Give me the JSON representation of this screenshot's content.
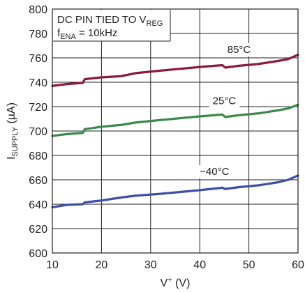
{
  "chart_data": {
    "type": "line",
    "annotation": {
      "line1_main": "DC PIN TIED TO V",
      "line1_sub": "REG",
      "line2_pre": "f",
      "line2_sub": "ENA",
      "line2_post": " = 10kHz"
    },
    "xlabel": {
      "main": "V",
      "sup": "+",
      "unit": " (V)"
    },
    "ylabel": {
      "main": "I",
      "sub": "SUPPLY",
      "unit": " (µA)"
    },
    "xlim": [
      10,
      60
    ],
    "ylim": [
      600,
      800
    ],
    "xticks": [
      10,
      20,
      30,
      40,
      50,
      60
    ],
    "yticks": [
      600,
      620,
      640,
      660,
      680,
      700,
      720,
      740,
      760,
      780,
      800
    ],
    "grid": true,
    "series": [
      {
        "name": "85°C",
        "color": "#8b1a3a",
        "points": [
          [
            10,
            737
          ],
          [
            13,
            738.5
          ],
          [
            16.2,
            739.5
          ],
          [
            16.6,
            742.5
          ],
          [
            20,
            744
          ],
          [
            24,
            745
          ],
          [
            27,
            747.5
          ],
          [
            32,
            749.5
          ],
          [
            36,
            751
          ],
          [
            40,
            752.5
          ],
          [
            44.6,
            754
          ],
          [
            45.2,
            752
          ],
          [
            48,
            753.5
          ],
          [
            52,
            755
          ],
          [
            56,
            757.5
          ],
          [
            58,
            759
          ],
          [
            60,
            762.5
          ]
        ]
      },
      {
        "name": "25°C",
        "color": "#3a8a4a",
        "points": [
          [
            10,
            696
          ],
          [
            13,
            697.5
          ],
          [
            16.2,
            698.5
          ],
          [
            16.6,
            701.5
          ],
          [
            20,
            703.5
          ],
          [
            24,
            705
          ],
          [
            27,
            707
          ],
          [
            32,
            709
          ],
          [
            36,
            710.5
          ],
          [
            40,
            712
          ],
          [
            44.6,
            713.5
          ],
          [
            45.2,
            711.5
          ],
          [
            48,
            713
          ],
          [
            52,
            714.5
          ],
          [
            56,
            717
          ],
          [
            58,
            718.5
          ],
          [
            60,
            721.5
          ]
        ]
      },
      {
        "name": "−40°C",
        "color": "#3c4fa8",
        "points": [
          [
            10,
            637.5
          ],
          [
            13,
            639.5
          ],
          [
            16.2,
            640
          ],
          [
            16.6,
            641.5
          ],
          [
            20,
            643
          ],
          [
            24,
            645.5
          ],
          [
            27,
            647
          ],
          [
            32,
            648.5
          ],
          [
            36,
            650
          ],
          [
            40,
            651.5
          ],
          [
            44.6,
            653.5
          ],
          [
            45.2,
            652.5
          ],
          [
            48,
            654
          ],
          [
            52,
            655.5
          ],
          [
            56,
            658
          ],
          [
            58,
            660
          ],
          [
            60,
            663.5
          ]
        ]
      }
    ],
    "label_positions": [
      {
        "series": 0,
        "x": 48,
        "y": 764
      },
      {
        "series": 1,
        "x": 45,
        "y": 722
      },
      {
        "series": 2,
        "x": 43,
        "y": 664
      }
    ]
  }
}
